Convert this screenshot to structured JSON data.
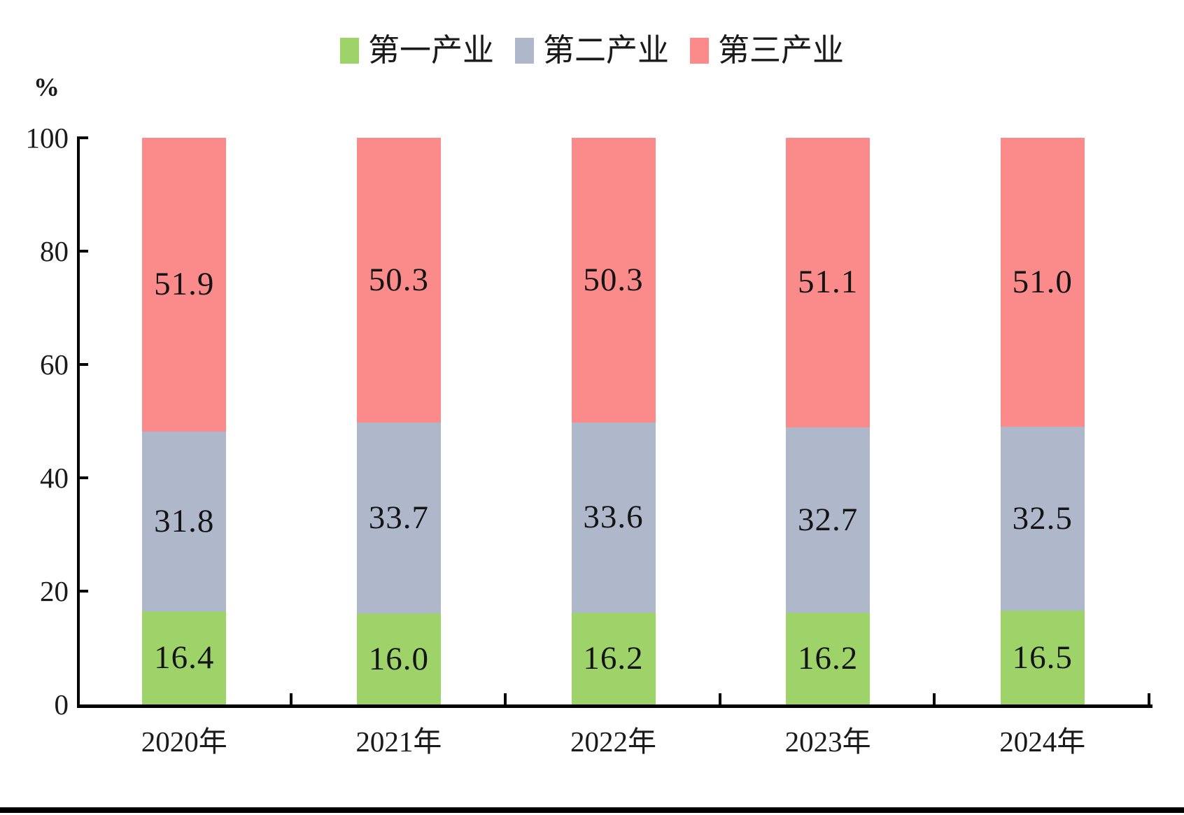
{
  "chart_data": {
    "type": "bar",
    "variant": "stacked-column",
    "unit_label": "%",
    "categories": [
      "2020年",
      "2021年",
      "2022年",
      "2023年",
      "2024年"
    ],
    "series": [
      {
        "name": "第一产业",
        "color": "#9ED36A",
        "values": [
          16.4,
          16.0,
          16.2,
          16.2,
          16.5
        ]
      },
      {
        "name": "第二产业",
        "color": "#AFB8CB",
        "values": [
          31.8,
          33.7,
          33.6,
          32.7,
          32.5
        ]
      },
      {
        "name": "第三产业",
        "color": "#FB8A8A",
        "values": [
          51.9,
          50.3,
          50.3,
          51.1,
          51.0
        ]
      }
    ],
    "ylim": [
      0,
      100
    ],
    "yticks": [
      0,
      20,
      40,
      60,
      80,
      100
    ],
    "legend_position": "top",
    "grid": false,
    "axis_color": "#000000",
    "text_color": "#1a1a1a"
  }
}
